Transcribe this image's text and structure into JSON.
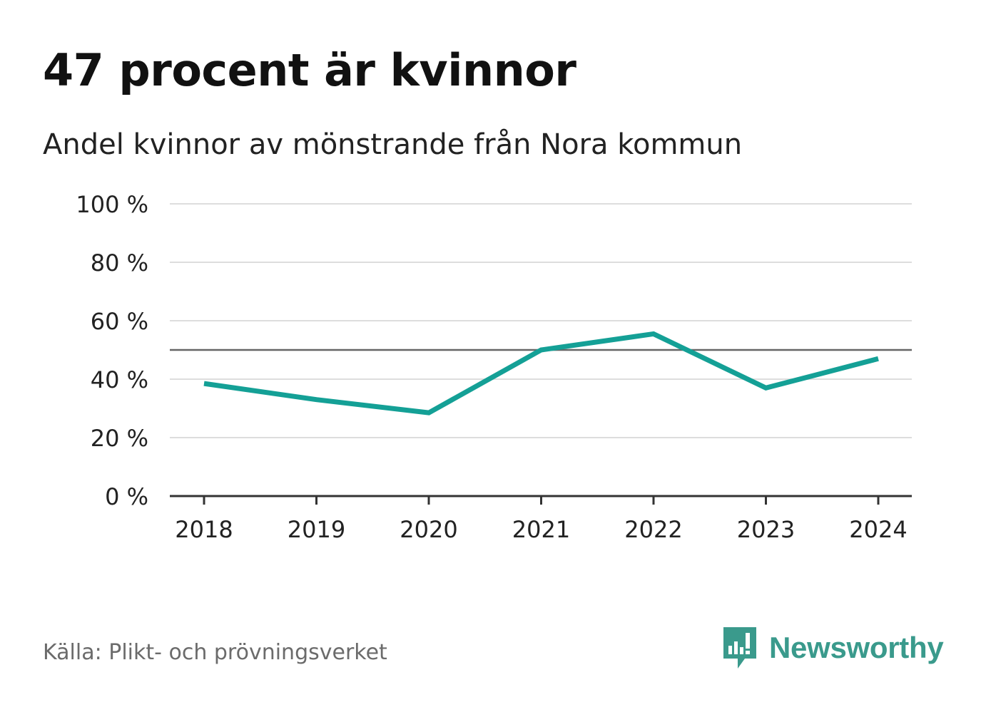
{
  "colors": {
    "line": "#14a096",
    "grid": "#dddddd",
    "reference": "#666666",
    "axis": "#333333",
    "brand": "#3a9a8c"
  },
  "footer": {
    "source": "Källa: Plikt- och prövningsverket",
    "brand_name": "Newsworthy",
    "brand_icon": "newsworthy-logo-icon"
  },
  "chart_data": {
    "type": "line",
    "title": "47 procent är kvinnor",
    "subtitle": "Andel kvinnor av mönstrande från Nora kommun",
    "xlabel": "",
    "ylabel": "",
    "x": [
      "2018",
      "2019",
      "2020",
      "2021",
      "2022",
      "2023",
      "2024"
    ],
    "series": [
      {
        "name": "Andel kvinnor",
        "values": [
          38.5,
          33.0,
          28.5,
          50.0,
          55.5,
          37.0,
          47.0
        ]
      }
    ],
    "ylim": [
      0,
      100
    ],
    "yticks": [
      0,
      20,
      40,
      60,
      80,
      100
    ],
    "ytick_labels": [
      "0 %",
      "20 %",
      "40 %",
      "60 %",
      "80 %",
      "100 %"
    ],
    "reference_line": 50,
    "grid": true,
    "legend": "none"
  }
}
